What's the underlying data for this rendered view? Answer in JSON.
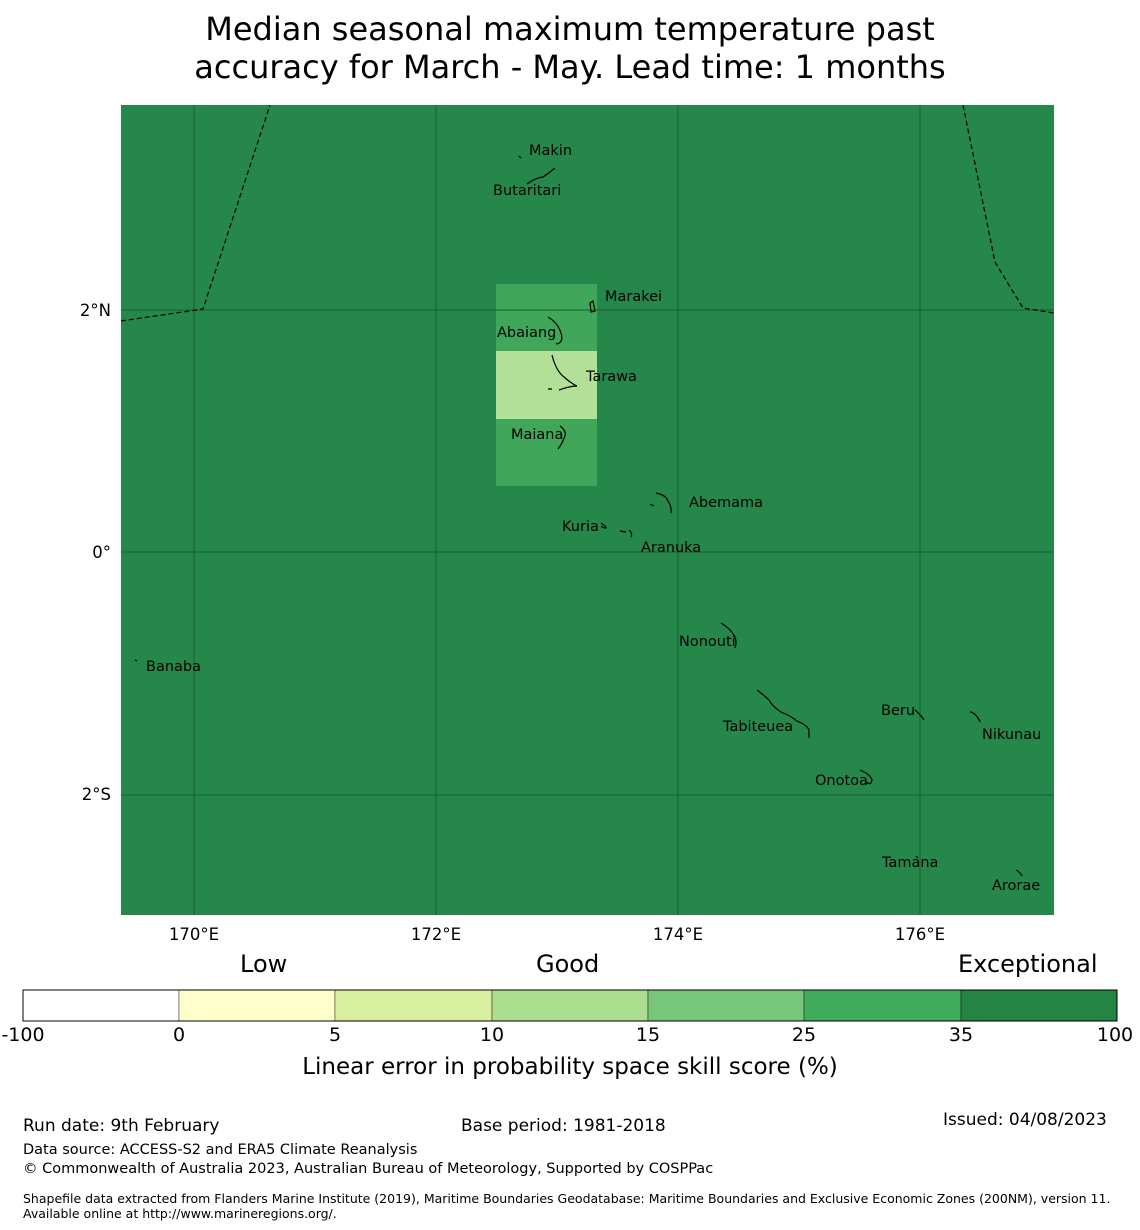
{
  "title": {
    "line1": "Median seasonal maximum temperature past",
    "line2": "accuracy for March - May. Lead time: 1 months"
  },
  "map": {
    "background_color": "#25884a",
    "lat_ticks": [
      "2°N",
      "0°",
      "2°S"
    ],
    "lon_ticks": [
      "170°E",
      "172°E",
      "174°E",
      "176°E"
    ],
    "islands": [
      "Makin",
      "Butaritari",
      "Marakei",
      "Abaiang",
      "Tarawa",
      "Maiana",
      "Abemama",
      "Kuria",
      "Aranuka",
      "Nonouti",
      "Banaba",
      "Beru",
      "Nikunau",
      "Tabiteuea",
      "Onotoa",
      "Tamana",
      "Arorae"
    ],
    "cells": [
      {
        "category": "25 to 35",
        "color": "#3fa65a"
      },
      {
        "category": "10 to 15",
        "color": "#b2e096"
      },
      {
        "category": "25 to 35",
        "color": "#3fa65a"
      }
    ]
  },
  "colorbar": {
    "categories": [
      "Low",
      "Good",
      "Exceptional"
    ],
    "ticks": [
      "-100",
      "0",
      "5",
      "10",
      "15",
      "25",
      "35",
      "100"
    ],
    "colors": [
      "#ffffff",
      "#ffffcc",
      "#d9f0a3",
      "#addd8e",
      "#78c679",
      "#41ab5d",
      "#238443"
    ],
    "label": "Linear error in probability space skill score (%)"
  },
  "footer": {
    "run_date": "Run date: 9th February",
    "base_period": "Base period: 1981-2018",
    "issued": "Issued: 04/08/2023",
    "data_source": "Data source: ACCESS-S2 and ERA5 Climate Reanalysis",
    "copyright": "© Commonwealth of Australia 2023, Australian Bureau of Meteorology, Supported by COSPPac",
    "shapefile": "Shapefile data extracted from Flanders Marine Institute (2019), Maritime Boundaries Geodatabase: Maritime Boundaries and Exclusive Economic Zones (200NM), version 11. Available online at http://www.marineregions.org/."
  }
}
